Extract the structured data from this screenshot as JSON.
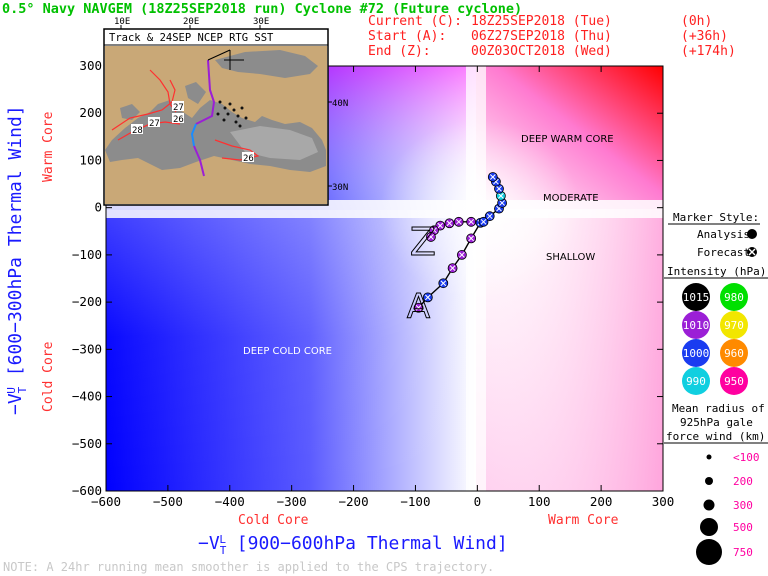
{
  "title": "0.5° Navy NAVGEM (18Z25SEP2018 run) Cyclone #72 (Future cyclone)",
  "times": [
    {
      "label": "Current (C):",
      "date": "18Z25SEP2018 (Tue)",
      "offset": "(0h)"
    },
    {
      "label": "Start (A):",
      "date": "06Z27SEP2018 (Thu)",
      "offset": "(+36h)"
    },
    {
      "label": "End (Z):",
      "date": "00Z03OCT2018 (Wed)",
      "offset": "(+174h)"
    }
  ],
  "inset": {
    "title": "Track & 24SEP NCEP RTG SST",
    "lon_labels": [
      "10E",
      "20E",
      "30E"
    ],
    "lat_labels": [
      "40N",
      "30N"
    ],
    "sst_labels": [
      "27",
      "26",
      "27",
      "28",
      "26"
    ]
  },
  "quadrant_labels": {
    "deep_warm": "DEEP WARM CORE",
    "moderate": "MODERATE",
    "shallow": "SHALLOW",
    "deep_cold": "DEEP COLD CORE"
  },
  "legend": {
    "marker_title": "Marker Style:",
    "analysis": "Analysis:",
    "forecast": "Forecast:",
    "intensity_title": "Intensity (hPa):",
    "intensity": [
      {
        "value": "1015",
        "color": "#000000",
        "text_color": "#ffffff"
      },
      {
        "value": "980",
        "color": "#00e000",
        "text_color": "#ffffff"
      },
      {
        "value": "1010",
        "color": "#9b1fd6",
        "text_color": "#ffffff"
      },
      {
        "value": "970",
        "color": "#f2e600",
        "text_color": "#ffffff"
      },
      {
        "value": "1000",
        "color": "#1a3cf0",
        "text_color": "#ffffff"
      },
      {
        "value": "960",
        "color": "#ff8a00",
        "text_color": "#ffffff"
      },
      {
        "value": "990",
        "color": "#10cfe0",
        "text_color": "#ffffff"
      },
      {
        "value": "950",
        "color": "#ff00a0",
        "text_color": "#ffffff"
      }
    ],
    "radius_title": [
      "Mean radius of",
      "925hPa gale",
      "force wind (km):"
    ],
    "radius": [
      "<100",
      "200",
      "300",
      "500",
      "750"
    ]
  },
  "note": "NOTE: A 24hr running mean smoother is applied to the CPS trajectory.",
  "chart_data": {
    "type": "scatter",
    "xlabel": "-Vₜᴸ [900-600hPa Thermal Wind]",
    "ylabel": "-Vₜᵁ [600-300hPa Thermal Wind]",
    "xlabel_prefix": "−V",
    "xlabel_sup": "L",
    "xlabel_sub": "T",
    "xlabel_text": " [900−600hPa Thermal Wind]",
    "ylabel_prefix": "−V",
    "ylabel_sup": "U",
    "ylabel_sub": "T",
    "ylabel_text": " [600−300hPa Thermal Wind]",
    "xlim": [
      -600,
      300
    ],
    "ylim": [
      -600,
      300
    ],
    "x_ticks": [
      "−600",
      "−500",
      "−400",
      "−300",
      "−200",
      "−100",
      "0",
      "100",
      "200",
      "300"
    ],
    "x_tick_values": [
      -600,
      -500,
      -400,
      -300,
      -200,
      -100,
      0,
      100,
      200,
      300
    ],
    "y_ticks": [
      "300",
      "200",
      "100",
      "0",
      "−100",
      "−200",
      "−300",
      "−400",
      "−500",
      "−600"
    ],
    "y_tick_values": [
      300,
      200,
      100,
      0,
      -100,
      -200,
      -300,
      -400,
      -500,
      -600
    ],
    "x_cold_label": "Cold Core",
    "x_warm_label": "Warm Core",
    "y_cold_label": "Cold Core",
    "y_warm_label": "Warm Core",
    "start_marker": "A",
    "end_marker": "Z",
    "series": [
      {
        "points": [
          {
            "x": -95,
            "y": -212,
            "color": "#9b1fd6"
          },
          {
            "x": -80,
            "y": -190,
            "color": "#1a3cf0"
          },
          {
            "x": -55,
            "y": -160,
            "color": "#1a3cf0"
          },
          {
            "x": -40,
            "y": -128,
            "color": "#9b1fd6"
          },
          {
            "x": -25,
            "y": -100,
            "color": "#9b1fd6"
          },
          {
            "x": -10,
            "y": -65,
            "color": "#9b1fd6"
          },
          {
            "x": 5,
            "y": -32,
            "color": "#1a3cf0"
          },
          {
            "x": 20,
            "y": -18,
            "color": "#1a3cf0"
          },
          {
            "x": 35,
            "y": -2,
            "color": "#1a3cf0"
          },
          {
            "x": 40,
            "y": 10,
            "color": "#1a3cf0"
          },
          {
            "x": 38,
            "y": 25,
            "color": "#10cfe0"
          },
          {
            "x": 35,
            "y": 40,
            "color": "#1a3cf0"
          },
          {
            "x": 30,
            "y": 55,
            "color": "#1a3cf0"
          },
          {
            "x": 25,
            "y": 65,
            "color": "#1a3cf0"
          },
          {
            "x": 10,
            "y": -30,
            "color": "#1a3cf0"
          },
          {
            "x": -10,
            "y": -30,
            "color": "#9b1fd6"
          },
          {
            "x": -30,
            "y": -30,
            "color": "#9b1fd6"
          },
          {
            "x": -45,
            "y": -33,
            "color": "#9b1fd6"
          },
          {
            "x": -60,
            "y": -38,
            "color": "#9b1fd6"
          },
          {
            "x": -70,
            "y": -48,
            "color": "#9b1fd6"
          },
          {
            "x": -75,
            "y": -62,
            "color": "#9b1fd6"
          }
        ]
      }
    ]
  }
}
